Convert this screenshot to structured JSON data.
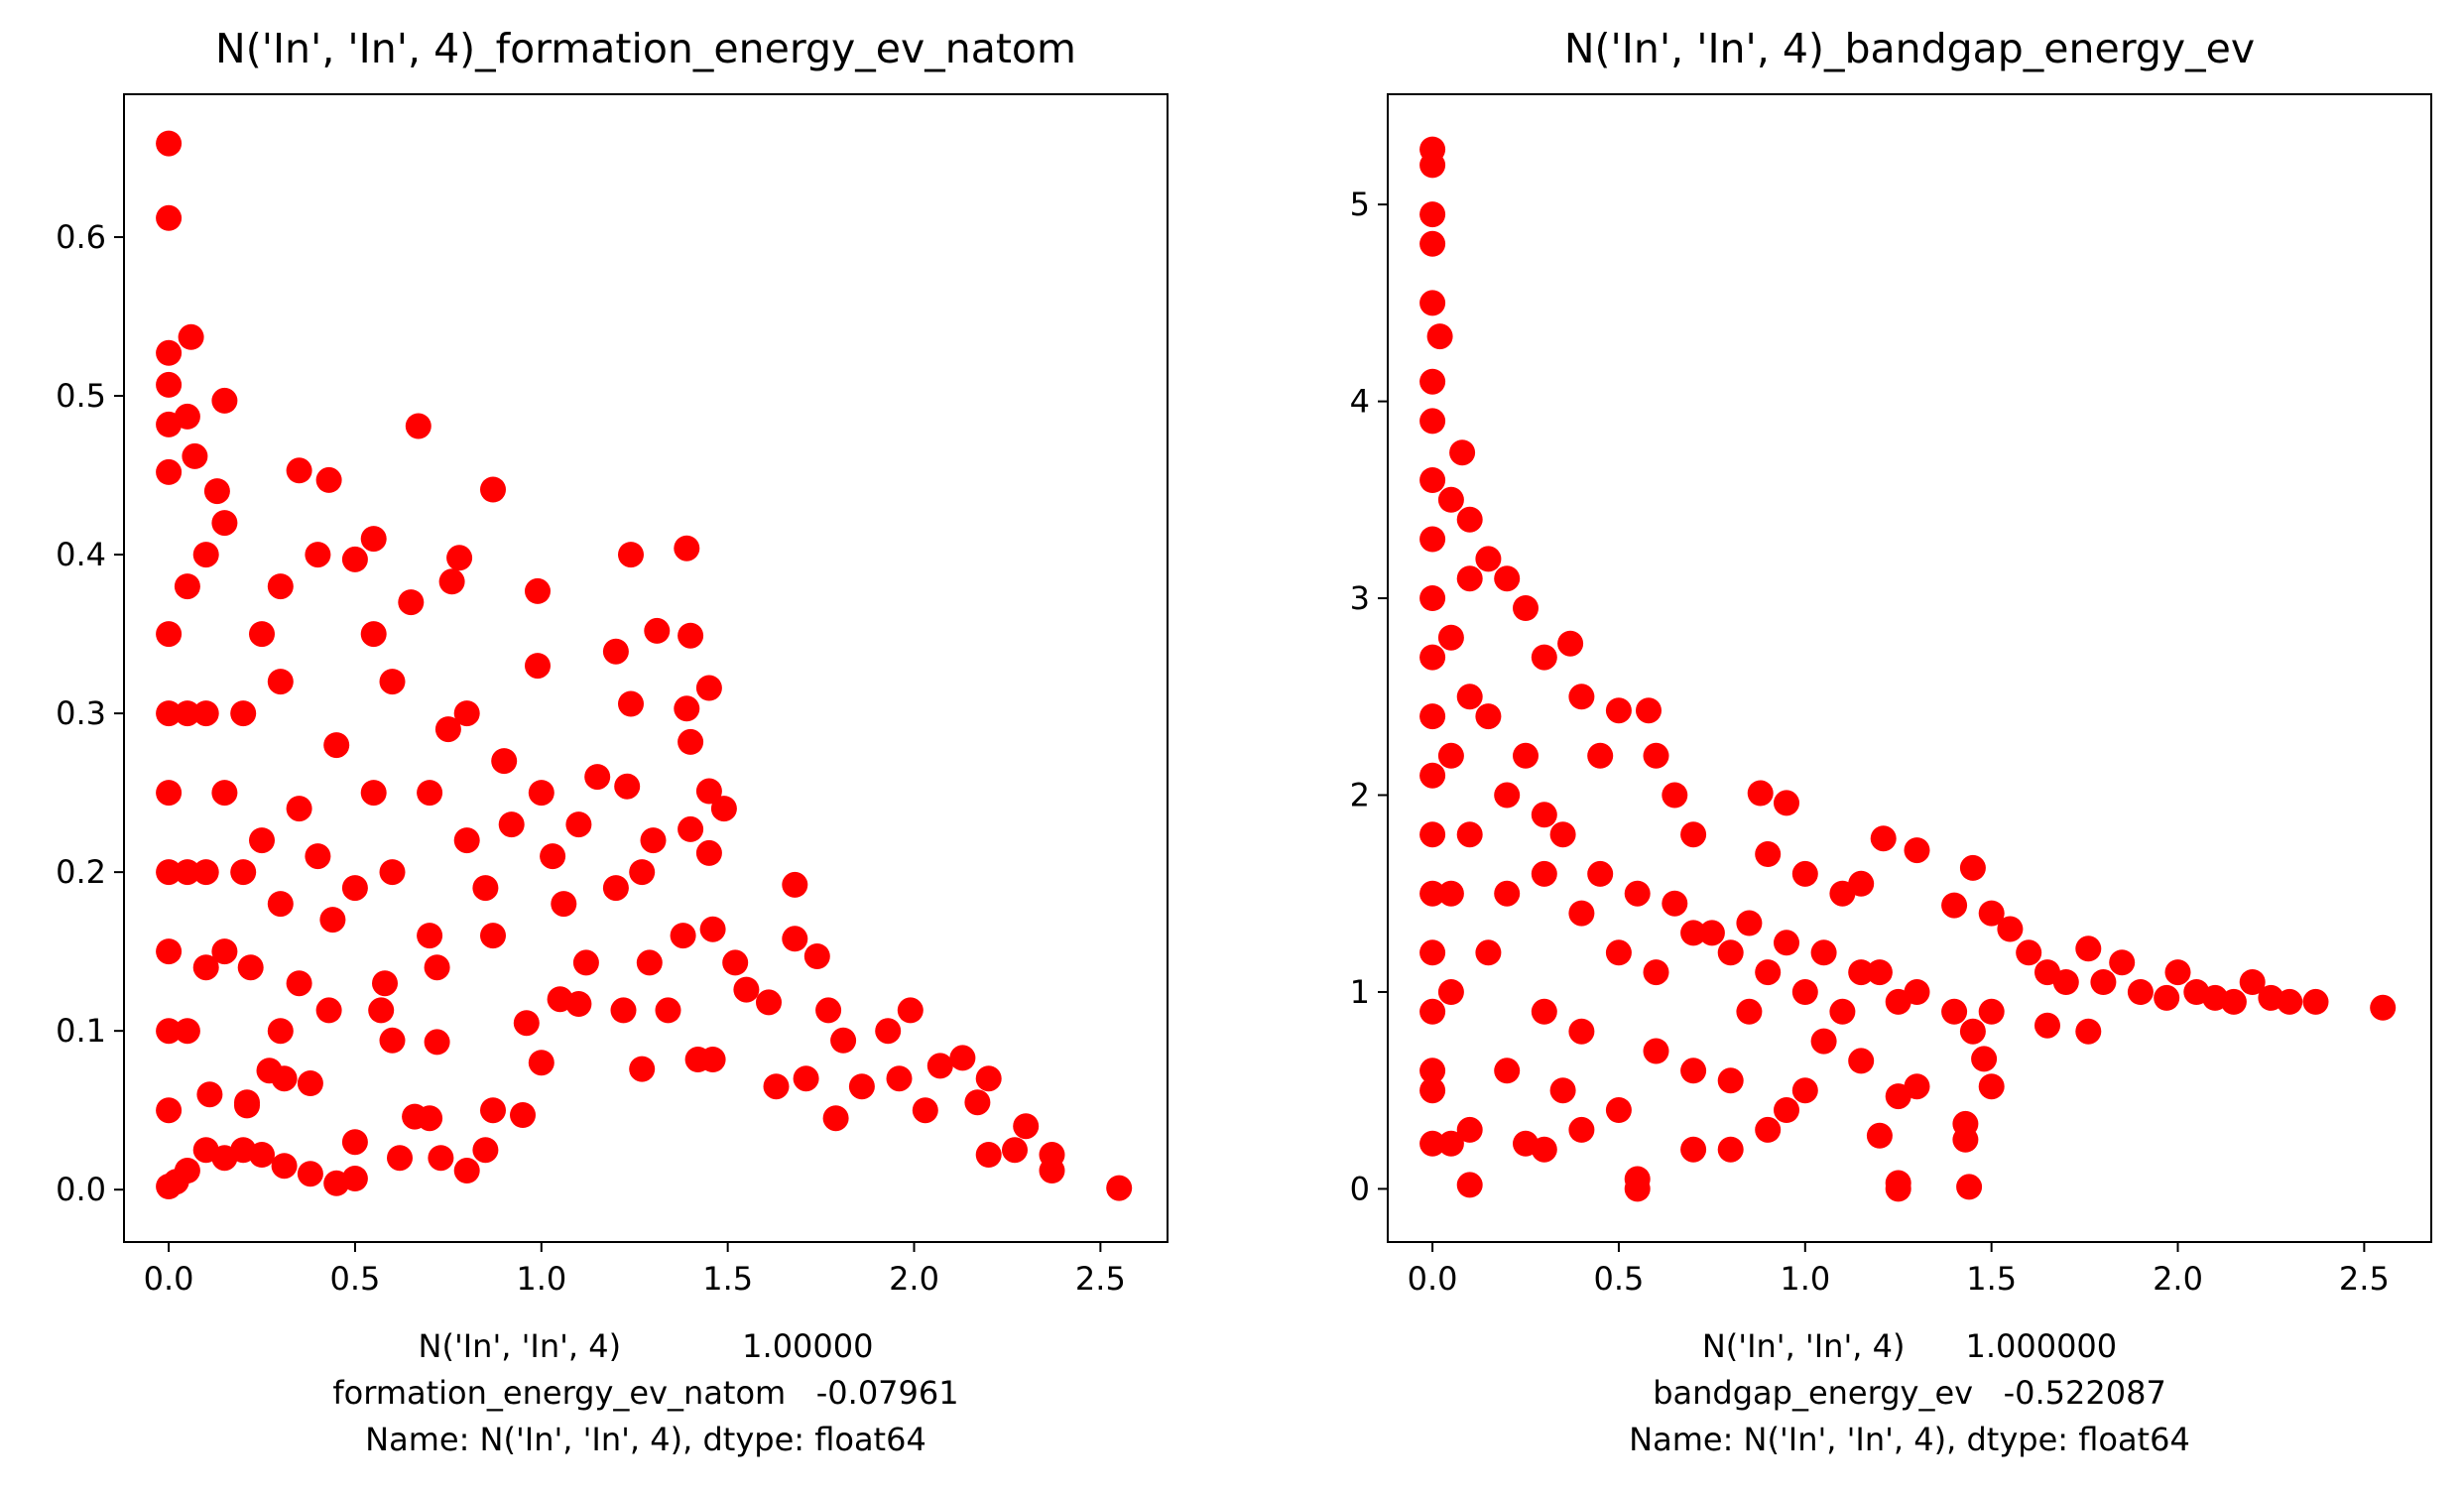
{
  "chart_data": [
    {
      "type": "scatter",
      "title": "N('In', 'In', 4)_formation_energy_ev_natom",
      "xlabel_lines": [
        "N('In', 'In', 4)            1.00000",
        "formation_energy_ev_natom   -0.07961",
        "Name: N('In', 'In', 4), dtype: float64"
      ],
      "ylabel": "",
      "xlim": [
        -0.12,
        2.68
      ],
      "ylim": [
        -0.033,
        0.69
      ],
      "xticks": [
        0.0,
        0.5,
        1.0,
        1.5,
        2.0,
        2.5
      ],
      "xtick_labels": [
        "0.0",
        "0.5",
        "1.0",
        "1.5",
        "2.0",
        "2.5"
      ],
      "yticks": [
        0.0,
        0.1,
        0.2,
        0.3,
        0.4,
        0.5,
        0.6
      ],
      "ytick_labels": [
        "0.0",
        "0.1",
        "0.2",
        "0.3",
        "0.4",
        "0.5",
        "0.6"
      ],
      "grid": false,
      "color": "#ff0000",
      "points": [
        [
          0.0,
          0.659
        ],
        [
          0.0,
          0.612
        ],
        [
          0.0,
          0.527
        ],
        [
          0.06,
          0.537
        ],
        [
          0.0,
          0.507
        ],
        [
          0.15,
          0.497
        ],
        [
          0.0,
          0.482
        ],
        [
          0.05,
          0.487
        ],
        [
          0.0,
          0.452
        ],
        [
          0.07,
          0.462
        ],
        [
          0.13,
          0.44
        ],
        [
          0.67,
          0.481
        ],
        [
          0.35,
          0.453
        ],
        [
          0.43,
          0.447
        ],
        [
          0.87,
          0.441
        ],
        [
          0.55,
          0.41
        ],
        [
          1.39,
          0.404
        ],
        [
          1.24,
          0.4
        ],
        [
          0.5,
          0.397
        ],
        [
          0.78,
          0.398
        ],
        [
          0.99,
          0.377
        ],
        [
          0.76,
          0.383
        ],
        [
          1.31,
          0.352
        ],
        [
          1.4,
          0.349
        ],
        [
          1.2,
          0.339
        ],
        [
          0.99,
          0.33
        ],
        [
          1.45,
          0.316
        ],
        [
          1.24,
          0.306
        ],
        [
          1.39,
          0.303
        ],
        [
          1.4,
          0.282
        ],
        [
          1.23,
          0.254
        ],
        [
          1.45,
          0.251
        ],
        [
          1.49,
          0.24
        ],
        [
          1.4,
          0.227
        ],
        [
          1.45,
          0.212
        ],
        [
          1.68,
          0.192
        ],
        [
          1.46,
          0.164
        ],
        [
          1.52,
          0.143
        ],
        [
          1.68,
          0.158
        ],
        [
          1.74,
          0.147
        ],
        [
          1.55,
          0.126
        ],
        [
          1.61,
          0.118
        ],
        [
          1.77,
          0.113
        ],
        [
          1.99,
          0.113
        ],
        [
          1.93,
          0.1
        ],
        [
          1.81,
          0.094
        ],
        [
          2.13,
          0.083
        ],
        [
          2.07,
          0.078
        ],
        [
          1.63,
          0.065
        ],
        [
          1.71,
          0.07
        ],
        [
          1.86,
          0.065
        ],
        [
          1.96,
          0.07
        ],
        [
          2.2,
          0.07
        ],
        [
          2.17,
          0.055
        ],
        [
          2.03,
          0.05
        ],
        [
          1.79,
          0.045
        ],
        [
          2.3,
          0.04
        ],
        [
          2.37,
          0.022
        ],
        [
          2.37,
          0.012
        ],
        [
          2.55,
          0.001
        ],
        [
          2.27,
          0.025
        ],
        [
          2.2,
          0.022
        ],
        [
          1.42,
          0.082
        ],
        [
          1.46,
          0.082
        ],
        [
          1.27,
          0.076
        ],
        [
          1.22,
          0.113
        ],
        [
          1.34,
          0.113
        ],
        [
          1.1,
          0.117
        ],
        [
          1.05,
          0.12
        ],
        [
          1.0,
          0.08
        ],
        [
          0.95,
          0.047
        ],
        [
          0.87,
          0.05
        ],
        [
          0.8,
          0.012
        ],
        [
          0.85,
          0.025
        ],
        [
          0.73,
          0.02
        ],
        [
          0.62,
          0.02
        ],
        [
          0.66,
          0.046
        ],
        [
          0.7,
          0.045
        ],
        [
          0.5,
          0.03
        ],
        [
          0.5,
          0.007
        ],
        [
          0.45,
          0.004
        ],
        [
          0.38,
          0.01
        ],
        [
          0.31,
          0.015
        ],
        [
          0.25,
          0.022
        ],
        [
          0.2,
          0.025
        ],
        [
          0.15,
          0.02
        ],
        [
          0.1,
          0.025
        ],
        [
          0.05,
          0.012
        ],
        [
          0.02,
          0.005
        ],
        [
          0.0,
          0.002
        ],
        [
          0.43,
          0.113
        ],
        [
          0.57,
          0.113
        ],
        [
          0.6,
          0.094
        ],
        [
          0.72,
          0.093
        ],
        [
          0.31,
          0.07
        ],
        [
          0.38,
          0.067
        ],
        [
          0.27,
          0.075
        ],
        [
          0.21,
          0.053
        ],
        [
          0.3,
          0.1
        ],
        [
          0.21,
          0.055
        ],
        [
          0.11,
          0.06
        ],
        [
          0.96,
          0.105
        ],
        [
          1.12,
          0.143
        ],
        [
          1.29,
          0.143
        ],
        [
          1.38,
          0.16
        ],
        [
          1.27,
          0.2
        ],
        [
          1.06,
          0.18
        ],
        [
          0.87,
          0.16
        ],
        [
          0.72,
          0.14
        ],
        [
          0.58,
          0.13
        ],
        [
          0.44,
          0.17
        ],
        [
          0.35,
          0.13
        ],
        [
          0.22,
          0.14
        ],
        [
          0.1,
          0.14
        ],
        [
          0.2,
          0.3
        ],
        [
          0.3,
          0.32
        ],
        [
          0.45,
          0.28
        ],
        [
          0.6,
          0.32
        ],
        [
          0.7,
          0.25
        ],
        [
          0.8,
          0.22
        ],
        [
          0.9,
          0.27
        ],
        [
          1.0,
          0.25
        ],
        [
          1.1,
          0.23
        ],
        [
          1.2,
          0.19
        ],
        [
          0.8,
          0.3
        ],
        [
          0.65,
          0.37
        ],
        [
          0.55,
          0.35
        ],
        [
          0.4,
          0.4
        ],
        [
          0.3,
          0.38
        ],
        [
          0.25,
          0.35
        ],
        [
          0.15,
          0.42
        ],
        [
          0.1,
          0.4
        ],
        [
          0.05,
          0.38
        ],
        [
          0.0,
          0.35
        ],
        [
          0.0,
          0.3
        ],
        [
          0.0,
          0.25
        ],
        [
          0.0,
          0.2
        ],
        [
          0.0,
          0.15
        ],
        [
          0.0,
          0.1
        ],
        [
          0.0,
          0.05
        ],
        [
          0.05,
          0.3
        ],
        [
          0.05,
          0.2
        ],
        [
          0.05,
          0.1
        ],
        [
          0.1,
          0.3
        ],
        [
          0.1,
          0.2
        ],
        [
          0.15,
          0.25
        ],
        [
          0.15,
          0.15
        ],
        [
          0.2,
          0.2
        ],
        [
          0.25,
          0.22
        ],
        [
          0.3,
          0.18
        ],
        [
          0.35,
          0.24
        ],
        [
          0.4,
          0.21
        ],
        [
          0.5,
          0.19
        ],
        [
          0.55,
          0.25
        ],
        [
          0.6,
          0.2
        ],
        [
          0.7,
          0.16
        ],
        [
          0.75,
          0.29
        ],
        [
          0.85,
          0.19
        ],
        [
          0.92,
          0.23
        ],
        [
          1.03,
          0.21
        ],
        [
          1.15,
          0.26
        ],
        [
          1.3,
          0.22
        ]
      ]
    },
    {
      "type": "scatter",
      "title": "N('In', 'In', 4)_bandgap_energy_ev",
      "xlabel_lines": [
        "N('In', 'In', 4)      1.000000",
        "bandgap_energy_ev   -0.522087",
        "Name: N('In', 'In', 4), dtype: float64"
      ],
      "ylabel": "",
      "xlim": [
        -0.12,
        2.68
      ],
      "ylim": [
        -0.27,
        5.56
      ],
      "xticks": [
        0.0,
        0.5,
        1.0,
        1.5,
        2.0,
        2.5
      ],
      "xtick_labels": [
        "0.0",
        "0.5",
        "1.0",
        "1.5",
        "2.0",
        "2.5"
      ],
      "yticks": [
        0,
        1,
        2,
        3,
        4,
        5
      ],
      "ytick_labels": [
        "0",
        "1",
        "2",
        "3",
        "4",
        "5"
      ],
      "grid": false,
      "color": "#ff0000",
      "points": [
        [
          0.0,
          5.28
        ],
        [
          0.0,
          5.2
        ],
        [
          0.0,
          4.95
        ],
        [
          0.0,
          4.8
        ],
        [
          0.0,
          4.5
        ],
        [
          0.02,
          4.33
        ],
        [
          0.0,
          4.1
        ],
        [
          0.0,
          3.9
        ],
        [
          0.0,
          3.6
        ],
        [
          0.0,
          3.3
        ],
        [
          0.0,
          3.0
        ],
        [
          0.0,
          2.7
        ],
        [
          0.0,
          2.4
        ],
        [
          0.0,
          2.1
        ],
        [
          0.0,
          1.8
        ],
        [
          0.0,
          1.5
        ],
        [
          0.0,
          1.2
        ],
        [
          0.0,
          0.9
        ],
        [
          0.0,
          0.6
        ],
        [
          0.0,
          0.5
        ],
        [
          0.08,
          3.74
        ],
        [
          0.05,
          3.5
        ],
        [
          0.1,
          3.4
        ],
        [
          0.1,
          3.1
        ],
        [
          0.15,
          3.2
        ],
        [
          0.2,
          3.1
        ],
        [
          0.25,
          2.95
        ],
        [
          0.3,
          2.7
        ],
        [
          0.37,
          2.77
        ],
        [
          0.4,
          2.5
        ],
        [
          0.5,
          2.43
        ],
        [
          0.58,
          2.43
        ],
        [
          0.45,
          2.2
        ],
        [
          0.6,
          2.2
        ],
        [
          0.65,
          2.0
        ],
        [
          0.7,
          1.8
        ],
        [
          0.88,
          2.01
        ],
        [
          0.95,
          1.96
        ],
        [
          0.9,
          1.7
        ],
        [
          1.0,
          1.6
        ],
        [
          1.1,
          1.5
        ],
        [
          1.21,
          1.78
        ],
        [
          1.3,
          1.72
        ],
        [
          1.15,
          1.55
        ],
        [
          1.4,
          1.44
        ],
        [
          1.45,
          1.63
        ],
        [
          1.5,
          1.4
        ],
        [
          1.55,
          1.32
        ],
        [
          1.6,
          1.2
        ],
        [
          1.65,
          1.1
        ],
        [
          1.7,
          1.05
        ],
        [
          1.76,
          1.22
        ],
        [
          1.8,
          1.05
        ],
        [
          1.85,
          1.15
        ],
        [
          1.9,
          1.0
        ],
        [
          1.97,
          0.97
        ],
        [
          2.0,
          1.1
        ],
        [
          2.05,
          1.0
        ],
        [
          2.1,
          0.97
        ],
        [
          2.15,
          0.95
        ],
        [
          2.2,
          1.05
        ],
        [
          2.25,
          0.97
        ],
        [
          2.3,
          0.95
        ],
        [
          2.37,
          0.95
        ],
        [
          2.55,
          0.92
        ],
        [
          1.76,
          0.8
        ],
        [
          1.65,
          0.83
        ],
        [
          1.5,
          0.9
        ],
        [
          1.45,
          0.8
        ],
        [
          1.48,
          0.66
        ],
        [
          1.5,
          0.52
        ],
        [
          1.43,
          0.33
        ],
        [
          1.43,
          0.25
        ],
        [
          1.44,
          0.01
        ],
        [
          1.3,
          0.52
        ],
        [
          1.25,
          0.47
        ],
        [
          1.2,
          0.27
        ],
        [
          1.25,
          0.03
        ],
        [
          1.25,
          0.0
        ],
        [
          1.0,
          0.5
        ],
        [
          0.95,
          0.4
        ],
        [
          0.9,
          0.3
        ],
        [
          0.8,
          0.2
        ],
        [
          0.7,
          0.2
        ],
        [
          0.55,
          0.0
        ],
        [
          0.55,
          0.05
        ],
        [
          0.5,
          0.4
        ],
        [
          0.4,
          0.3
        ],
        [
          0.35,
          0.5
        ],
        [
          0.3,
          0.2
        ],
        [
          0.25,
          0.23
        ],
        [
          0.2,
          0.6
        ],
        [
          0.1,
          0.3
        ],
        [
          0.05,
          0.23
        ],
        [
          0.0,
          0.23
        ],
        [
          0.1,
          0.02
        ],
        [
          0.3,
          1.6
        ],
        [
          0.4,
          1.4
        ],
        [
          0.5,
          1.2
        ],
        [
          0.6,
          1.1
        ],
        [
          0.7,
          1.3
        ],
        [
          0.8,
          1.2
        ],
        [
          0.9,
          1.1
        ],
        [
          1.0,
          1.0
        ],
        [
          1.1,
          0.9
        ],
        [
          1.2,
          1.1
        ],
        [
          1.3,
          1.0
        ],
        [
          1.4,
          0.9
        ],
        [
          0.2,
          2.0
        ],
        [
          0.3,
          1.9
        ],
        [
          0.2,
          1.5
        ],
        [
          0.15,
          1.2
        ],
        [
          0.1,
          2.5
        ],
        [
          0.1,
          1.8
        ],
        [
          0.05,
          2.8
        ],
        [
          0.05,
          2.2
        ],
        [
          0.05,
          1.5
        ],
        [
          0.05,
          1.0
        ],
        [
          0.15,
          2.4
        ],
        [
          0.25,
          2.2
        ],
        [
          0.35,
          1.8
        ],
        [
          0.45,
          1.6
        ],
        [
          0.55,
          1.5
        ],
        [
          0.65,
          1.45
        ],
        [
          0.75,
          1.3
        ],
        [
          0.85,
          1.35
        ],
        [
          0.95,
          1.25
        ],
        [
          1.05,
          1.2
        ],
        [
          1.15,
          1.1
        ],
        [
          1.25,
          0.95
        ],
        [
          0.3,
          0.9
        ],
        [
          0.4,
          0.8
        ],
        [
          0.6,
          0.7
        ],
        [
          0.7,
          0.6
        ],
        [
          0.8,
          0.55
        ],
        [
          0.85,
          0.9
        ],
        [
          1.05,
          0.75
        ],
        [
          1.15,
          0.65
        ]
      ]
    }
  ]
}
